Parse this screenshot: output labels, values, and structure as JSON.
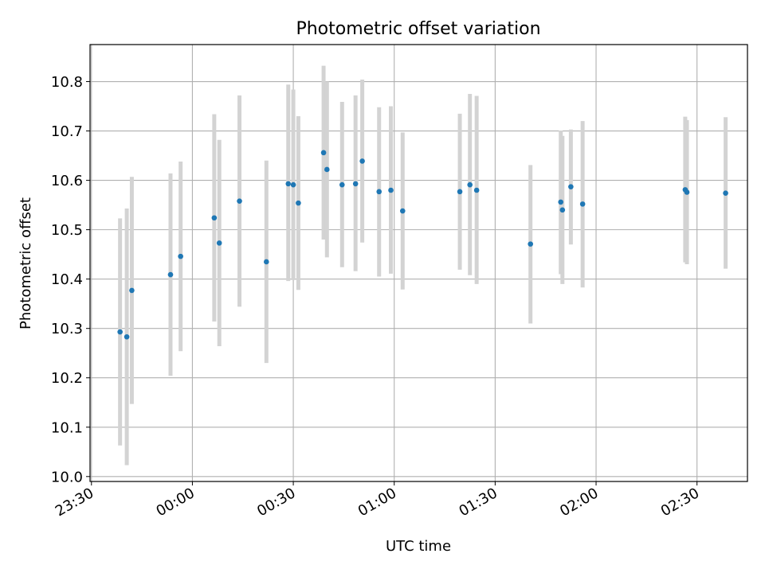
{
  "chart_data": {
    "type": "scatter",
    "title": "Photometric offset variation",
    "xlabel": "UTC time",
    "ylabel": "Photometric offset",
    "x_axis": {
      "unit": "time",
      "range": [
        "23:30",
        "02:45"
      ],
      "ticks": [
        "23:30",
        "00:00",
        "00:30",
        "01:00",
        "01:30",
        "02:00",
        "02:30"
      ]
    },
    "y_axis": {
      "range": [
        9.99,
        10.875
      ],
      "ticks": [
        "10.0",
        "10.1",
        "10.2",
        "10.3",
        "10.4",
        "10.5",
        "10.6",
        "10.7",
        "10.8"
      ]
    },
    "grid": true,
    "marker_color": "#1f77b4",
    "errorbar_color": "#d3d3d3",
    "points": [
      {
        "time": "23:38:30",
        "y": 10.293,
        "low": 10.063,
        "high": 10.523
      },
      {
        "time": "23:40:30",
        "y": 10.283,
        "low": 10.023,
        "high": 10.543
      },
      {
        "time": "23:42:00",
        "y": 10.377,
        "low": 10.147,
        "high": 10.607
      },
      {
        "time": "23:53:30",
        "y": 10.409,
        "low": 10.204,
        "high": 10.614
      },
      {
        "time": "23:56:30",
        "y": 10.446,
        "low": 10.254,
        "high": 10.638
      },
      {
        "time": "00:06:30",
        "y": 10.524,
        "low": 10.314,
        "high": 10.734
      },
      {
        "time": "00:08:00",
        "y": 10.473,
        "low": 10.264,
        "high": 10.682
      },
      {
        "time": "00:14:00",
        "y": 10.558,
        "low": 10.344,
        "high": 10.772
      },
      {
        "time": "00:22:00",
        "y": 10.435,
        "low": 10.23,
        "high": 10.64
      },
      {
        "time": "00:28:30",
        "y": 10.593,
        "low": 10.396,
        "high": 10.794
      },
      {
        "time": "00:30:00",
        "y": 10.591,
        "low": 10.398,
        "high": 10.784
      },
      {
        "time": "00:31:30",
        "y": 10.554,
        "low": 10.378,
        "high": 10.73
      },
      {
        "time": "00:39:00",
        "y": 10.656,
        "low": 10.48,
        "high": 10.832
      },
      {
        "time": "00:40:00",
        "y": 10.622,
        "low": 10.444,
        "high": 10.8
      },
      {
        "time": "00:44:30",
        "y": 10.591,
        "low": 10.424,
        "high": 10.759
      },
      {
        "time": "00:48:30",
        "y": 10.593,
        "low": 10.416,
        "high": 10.772
      },
      {
        "time": "00:50:30",
        "y": 10.639,
        "low": 10.474,
        "high": 10.804
      },
      {
        "time": "00:55:30",
        "y": 10.577,
        "low": 10.405,
        "high": 10.748
      },
      {
        "time": "00:59:00",
        "y": 10.58,
        "low": 10.411,
        "high": 10.75
      },
      {
        "time": "01:02:30",
        "y": 10.538,
        "low": 10.379,
        "high": 10.697
      },
      {
        "time": "01:19:30",
        "y": 10.577,
        "low": 10.419,
        "high": 10.735
      },
      {
        "time": "01:22:30",
        "y": 10.591,
        "low": 10.408,
        "high": 10.775
      },
      {
        "time": "01:24:30",
        "y": 10.58,
        "low": 10.39,
        "high": 10.771
      },
      {
        "time": "01:40:30",
        "y": 10.471,
        "low": 10.31,
        "high": 10.631
      },
      {
        "time": "01:49:30",
        "y": 10.556,
        "low": 10.41,
        "high": 10.701
      },
      {
        "time": "01:50:00",
        "y": 10.54,
        "low": 10.39,
        "high": 10.69
      },
      {
        "time": "01:52:30",
        "y": 10.587,
        "low": 10.47,
        "high": 10.703
      },
      {
        "time": "01:56:00",
        "y": 10.552,
        "low": 10.383,
        "high": 10.72
      },
      {
        "time": "02:26:30",
        "y": 10.581,
        "low": 10.434,
        "high": 10.729
      },
      {
        "time": "02:27:00",
        "y": 10.576,
        "low": 10.43,
        "high": 10.722
      },
      {
        "time": "02:38:30",
        "y": 10.574,
        "low": 10.421,
        "high": 10.728
      }
    ]
  }
}
